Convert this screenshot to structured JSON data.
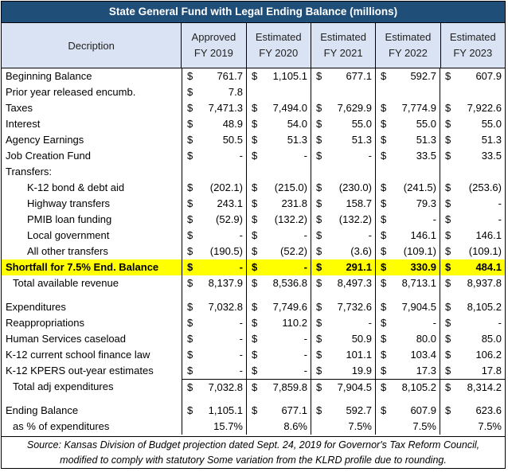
{
  "title": "State General Fund with Legal Ending Balance (millions)",
  "header": {
    "description": "Decription",
    "years": [
      {
        "line1": "Approved",
        "line2": "FY 2019"
      },
      {
        "line1": "Estimated",
        "line2": "FY 2020"
      },
      {
        "line1": "Estimated",
        "line2": "FY 2021"
      },
      {
        "line1": "Estimated",
        "line2": "FY 2022"
      },
      {
        "line1": "Estimated",
        "line2": "FY 2023"
      }
    ]
  },
  "rows": [
    {
      "label": "Beginning Balance",
      "values": [
        "761.7",
        "1,105.1",
        "677.1",
        "592.7",
        "607.9"
      ]
    },
    {
      "label": "Prior year released encumb.",
      "values": [
        "7.8",
        "",
        "",
        "",
        ""
      ]
    },
    {
      "label": "Taxes",
      "values": [
        "7,471.3",
        "7,494.0",
        "7,629.9",
        "7,774.9",
        "7,922.6"
      ]
    },
    {
      "label": "Interest",
      "values": [
        "48.9",
        "54.0",
        "55.0",
        "55.0",
        "55.0"
      ]
    },
    {
      "label": "Agency Earnings",
      "values": [
        "50.5",
        "51.3",
        "51.3",
        "51.3",
        "51.3"
      ]
    },
    {
      "label": "Job Creation Fund",
      "values": [
        "-",
        "-",
        "-",
        "33.5",
        "33.5"
      ]
    },
    {
      "label": "Transfers:",
      "values": [
        "",
        "",
        "",
        "",
        ""
      ]
    },
    {
      "label": "K-12 bond & debt aid",
      "values": [
        "(202.1)",
        "(215.0)",
        "(230.0)",
        "(241.5)",
        "(253.6)"
      ]
    },
    {
      "label": "Highway transfers",
      "values": [
        "243.1",
        "231.8",
        "158.7",
        "79.3",
        "-"
      ]
    },
    {
      "label": "PMIB loan funding",
      "values": [
        "(52.9)",
        "(132.2)",
        "(132.2)",
        "-",
        "-"
      ]
    },
    {
      "label": "Local government",
      "values": [
        "-",
        "-",
        "-",
        "146.1",
        "146.1"
      ]
    },
    {
      "label": "All other transfers",
      "values": [
        "(190.5)",
        "(52.2)",
        "(3.6)",
        "(109.1)",
        "(109.1)"
      ]
    },
    {
      "label": "Shortfall for 7.5% End. Balance",
      "values": [
        "-",
        "-",
        "291.1",
        "330.9",
        "484.1"
      ]
    },
    {
      "label": "Total available revenue",
      "values": [
        "8,137.9",
        "8,536.8",
        "8,497.3",
        "8,713.1",
        "8,937.8"
      ]
    },
    {
      "label": "Expenditures",
      "values": [
        "7,032.8",
        "7,749.6",
        "7,732.6",
        "7,904.5",
        "8,105.2"
      ]
    },
    {
      "label": "Reappropriations",
      "values": [
        "-",
        "110.2",
        "-",
        "-",
        "-"
      ]
    },
    {
      "label": "Human Services caseload",
      "values": [
        "-",
        "-",
        "50.9",
        "80.0",
        "85.0"
      ]
    },
    {
      "label": "K-12 current school finance law",
      "values": [
        "-",
        "-",
        "101.1",
        "103.4",
        "106.2"
      ]
    },
    {
      "label": "K-12 KPERS out-year estimates",
      "values": [
        "-",
        "-",
        "19.9",
        "17.3",
        "17.8"
      ]
    },
    {
      "label": "Total adj expenditures",
      "values": [
        "7,032.8",
        "7,859.8",
        "7,904.5",
        "8,105.2",
        "8,314.2"
      ]
    },
    {
      "label": "Ending Balance",
      "values": [
        "1,105.1",
        "677.1",
        "592.7",
        "607.9",
        "623.6"
      ]
    },
    {
      "label": "as % of expenditures",
      "values": [
        "15.7%",
        "8.6%",
        "7.5%",
        "7.5%",
        "7.5%"
      ]
    }
  ],
  "currency_symbol": "$",
  "source": {
    "line1": "Source: Kansas Division of Budget projection dated Sept. 24, 2019 for Governor's Tax Reform Council,",
    "line2": "modified to comply with statutory Some variation from the KLRD profile due to rounding."
  },
  "colors": {
    "title_bg": "#1f4e79",
    "header_bg": "#dae3f3",
    "highlight": "#ffff00"
  }
}
